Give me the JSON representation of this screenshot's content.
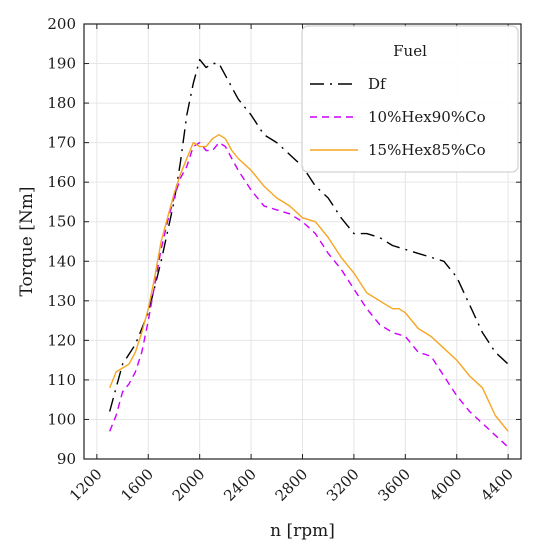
{
  "chart_data": {
    "type": "line",
    "title": "",
    "xlabel": "n [rpm]",
    "ylabel": "Torque [Nm]",
    "xlim": [
      1100,
      4500
    ],
    "ylim": [
      90,
      200
    ],
    "xticks": [
      1200,
      1600,
      2000,
      2400,
      2800,
      3200,
      3600,
      4000,
      4400
    ],
    "yticks": [
      90,
      100,
      110,
      120,
      130,
      140,
      150,
      160,
      170,
      180,
      190,
      200
    ],
    "grid": true,
    "legend": {
      "title": "Fuel",
      "position": "top-right"
    },
    "series": [
      {
        "name": "Df",
        "color": "#000000",
        "dash": "dash-dot",
        "x": [
          1300,
          1350,
          1400,
          1500,
          1600,
          1700,
          1800,
          1850,
          1900,
          1950,
          2000,
          2050,
          2100,
          2150,
          2200,
          2300,
          2400,
          2500,
          2600,
          2700,
          2800,
          2900,
          3000,
          3100,
          3200,
          3300,
          3400,
          3500,
          3600,
          3700,
          3800,
          3900,
          4000,
          4100,
          4200,
          4300,
          4400
        ],
        "y": [
          102,
          108,
          114,
          119,
          127,
          140,
          155,
          165,
          177,
          185,
          191,
          189,
          190,
          190,
          187,
          181,
          177,
          172,
          170,
          167,
          164,
          159,
          156,
          151,
          147,
          147,
          146,
          144,
          143,
          142,
          141,
          140,
          136,
          129,
          122,
          117,
          114
        ]
      },
      {
        "name": "10%Hex90%Co",
        "color": "#cc00ff",
        "dash": "dash",
        "x": [
          1300,
          1350,
          1400,
          1450,
          1500,
          1550,
          1600,
          1650,
          1700,
          1750,
          1800,
          1850,
          1900,
          1950,
          2000,
          2050,
          2100,
          2150,
          2200,
          2250,
          2300,
          2400,
          2500,
          2600,
          2700,
          2800,
          2900,
          3000,
          3100,
          3200,
          3300,
          3400,
          3500,
          3600,
          3700,
          3800,
          3900,
          4000,
          4100,
          4200,
          4300,
          4400
        ],
        "y": [
          97,
          101,
          107,
          109,
          112,
          117,
          125,
          134,
          143,
          150,
          156,
          161,
          164,
          169,
          170,
          168,
          168,
          170,
          169,
          166,
          163,
          158,
          154,
          153,
          152,
          150,
          147,
          142,
          138,
          133,
          128,
          124,
          122,
          121,
          117,
          116,
          111,
          106,
          102,
          99,
          96,
          93
        ]
      },
      {
        "name": "15%Hex85%Co",
        "color": "#f5a623",
        "dash": "solid",
        "x": [
          1300,
          1350,
          1400,
          1450,
          1500,
          1550,
          1600,
          1650,
          1700,
          1750,
          1800,
          1850,
          1900,
          1950,
          2000,
          2050,
          2100,
          2150,
          2200,
          2250,
          2300,
          2400,
          2500,
          2600,
          2700,
          2800,
          2900,
          3000,
          3100,
          3200,
          3300,
          3400,
          3500,
          3550,
          3600,
          3700,
          3800,
          3900,
          4000,
          4100,
          4200,
          4300,
          4400
        ],
        "y": [
          108,
          112,
          113,
          114,
          117,
          122,
          128,
          136,
          145,
          151,
          157,
          162,
          166,
          170,
          169,
          169,
          171,
          172,
          171,
          168,
          166,
          163,
          159,
          156,
          154,
          151,
          150,
          146,
          141,
          137,
          132,
          130,
          128,
          128,
          127,
          123,
          121,
          118,
          115,
          111,
          108,
          101,
          97
        ]
      }
    ]
  }
}
